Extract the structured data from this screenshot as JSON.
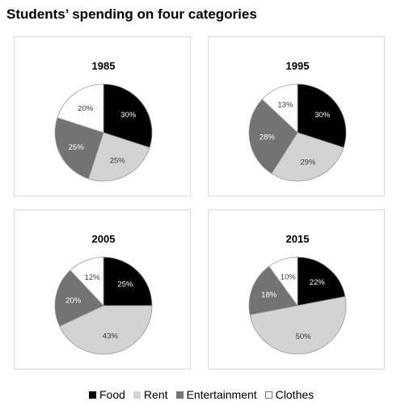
{
  "title": "Students’ spending on four categories",
  "chart_data": [
    {
      "type": "pie",
      "title": "1985",
      "categories": [
        "Food",
        "Rent",
        "Entertainment",
        "Clothes"
      ],
      "values": [
        30,
        25,
        25,
        20
      ],
      "labels": [
        "30%",
        "25%",
        "25%",
        "20%"
      ]
    },
    {
      "type": "pie",
      "title": "1995",
      "categories": [
        "Food",
        "Rent",
        "Entertainment",
        "Clothes"
      ],
      "values": [
        30,
        29,
        28,
        13
      ],
      "labels": [
        "30%",
        "29%",
        "28%",
        "13%"
      ]
    },
    {
      "type": "pie",
      "title": "2005",
      "categories": [
        "Food",
        "Rent",
        "Entertainment",
        "Clothes"
      ],
      "values": [
        25,
        43,
        20,
        12
      ],
      "labels": [
        "25%",
        "43%",
        "20%",
        "12%"
      ]
    },
    {
      "type": "pie",
      "title": "2015",
      "categories": [
        "Food",
        "Rent",
        "Entertainment",
        "Clothes"
      ],
      "values": [
        22,
        50,
        18,
        10
      ],
      "labels": [
        "22%",
        "50%",
        "18%",
        "10%"
      ]
    }
  ],
  "legend": [
    {
      "label": "Food",
      "color": "#000000"
    },
    {
      "label": "Rent",
      "color": "#d3d3d3"
    },
    {
      "label": "Entertainment",
      "color": "#737373"
    },
    {
      "label": "Clothes",
      "color": "#ffffff"
    }
  ],
  "label_colors": [
    "#ffffff",
    "#3a3a3a",
    "#ffffff",
    "#3a3a3a"
  ]
}
